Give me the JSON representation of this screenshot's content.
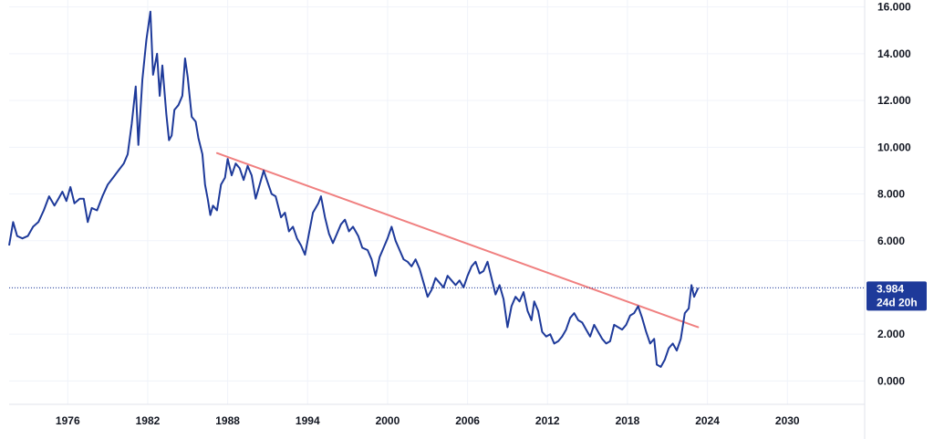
{
  "chart_data": {
    "type": "line",
    "title": "",
    "xlabel": "",
    "ylabel": "",
    "xlim": [
      1971.6,
      2035.8
    ],
    "ylim": [
      -1.0,
      16.3
    ],
    "x_ticks": [
      {
        "value": 1976,
        "label": "1976"
      },
      {
        "value": 1982,
        "label": "1982"
      },
      {
        "value": 1988,
        "label": "1988"
      },
      {
        "value": 1994,
        "label": "1994"
      },
      {
        "value": 2000,
        "label": "2000"
      },
      {
        "value": 2006,
        "label": "2006"
      },
      {
        "value": 2012,
        "label": "2012"
      },
      {
        "value": 2018,
        "label": "2018"
      },
      {
        "value": 2024,
        "label": "2024"
      },
      {
        "value": 2030,
        "label": "2030"
      }
    ],
    "y_ticks": [
      {
        "value": 0,
        "label": "0.000"
      },
      {
        "value": 2,
        "label": "2.000"
      },
      {
        "value": 4,
        "label": "4.000"
      },
      {
        "value": 6,
        "label": "6.000"
      },
      {
        "value": 8,
        "label": "8.000"
      },
      {
        "value": 10,
        "label": "10.000"
      },
      {
        "value": 12,
        "label": "12.000"
      },
      {
        "value": 14,
        "label": "14.000"
      },
      {
        "value": 16,
        "label": "16.000"
      }
    ],
    "grid": true,
    "series": [
      {
        "name": "",
        "color": "#1e3a9a",
        "points": [
          [
            1971.6,
            5.8
          ],
          [
            1971.9,
            6.8
          ],
          [
            1972.2,
            6.2
          ],
          [
            1972.6,
            6.1
          ],
          [
            1973.0,
            6.2
          ],
          [
            1973.4,
            6.6
          ],
          [
            1973.8,
            6.8
          ],
          [
            1974.2,
            7.3
          ],
          [
            1974.6,
            7.9
          ],
          [
            1975.0,
            7.5
          ],
          [
            1975.3,
            7.8
          ],
          [
            1975.6,
            8.1
          ],
          [
            1975.9,
            7.7
          ],
          [
            1976.2,
            8.3
          ],
          [
            1976.5,
            7.6
          ],
          [
            1976.9,
            7.8
          ],
          [
            1977.2,
            7.8
          ],
          [
            1977.5,
            6.8
          ],
          [
            1977.8,
            7.4
          ],
          [
            1978.2,
            7.3
          ],
          [
            1978.6,
            7.9
          ],
          [
            1979.0,
            8.4
          ],
          [
            1979.4,
            8.7
          ],
          [
            1979.8,
            9.0
          ],
          [
            1980.2,
            9.3
          ],
          [
            1980.5,
            9.7
          ],
          [
            1980.8,
            11.0
          ],
          [
            1981.1,
            12.6
          ],
          [
            1981.3,
            10.1
          ],
          [
            1981.6,
            12.9
          ],
          [
            1981.9,
            14.6
          ],
          [
            1982.2,
            15.8
          ],
          [
            1982.4,
            13.1
          ],
          [
            1982.7,
            14.0
          ],
          [
            1982.9,
            12.2
          ],
          [
            1983.1,
            13.5
          ],
          [
            1983.4,
            11.4
          ],
          [
            1983.6,
            10.3
          ],
          [
            1983.8,
            10.5
          ],
          [
            1984.0,
            11.6
          ],
          [
            1984.3,
            11.8
          ],
          [
            1984.6,
            12.2
          ],
          [
            1984.8,
            13.8
          ],
          [
            1985.0,
            13.0
          ],
          [
            1985.3,
            11.3
          ],
          [
            1985.6,
            11.1
          ],
          [
            1985.8,
            10.4
          ],
          [
            1986.1,
            9.7
          ],
          [
            1986.3,
            8.4
          ],
          [
            1986.5,
            7.8
          ],
          [
            1986.7,
            7.1
          ],
          [
            1986.9,
            7.5
          ],
          [
            1987.2,
            7.3
          ],
          [
            1987.5,
            8.4
          ],
          [
            1987.8,
            8.7
          ],
          [
            1988.0,
            9.5
          ],
          [
            1988.3,
            8.8
          ],
          [
            1988.6,
            9.3
          ],
          [
            1988.9,
            9.1
          ],
          [
            1989.2,
            8.6
          ],
          [
            1989.5,
            9.2
          ],
          [
            1989.8,
            8.8
          ],
          [
            1990.1,
            7.8
          ],
          [
            1990.4,
            8.4
          ],
          [
            1990.7,
            9.0
          ],
          [
            1991.0,
            8.5
          ],
          [
            1991.3,
            8.0
          ],
          [
            1991.6,
            7.9
          ],
          [
            1992.0,
            7.0
          ],
          [
            1992.3,
            7.2
          ],
          [
            1992.6,
            6.4
          ],
          [
            1992.9,
            6.6
          ],
          [
            1993.2,
            6.1
          ],
          [
            1993.5,
            5.8
          ],
          [
            1993.8,
            5.4
          ],
          [
            1994.1,
            6.3
          ],
          [
            1994.4,
            7.2
          ],
          [
            1994.8,
            7.6
          ],
          [
            1995.0,
            7.9
          ],
          [
            1995.3,
            7.0
          ],
          [
            1995.6,
            6.3
          ],
          [
            1995.9,
            5.9
          ],
          [
            1996.2,
            6.3
          ],
          [
            1996.5,
            6.7
          ],
          [
            1996.8,
            6.9
          ],
          [
            1997.1,
            6.4
          ],
          [
            1997.4,
            6.6
          ],
          [
            1997.8,
            6.2
          ],
          [
            1998.1,
            5.7
          ],
          [
            1998.5,
            5.6
          ],
          [
            1998.8,
            5.2
          ],
          [
            1999.1,
            4.5
          ],
          [
            1999.4,
            5.3
          ],
          [
            1999.7,
            5.7
          ],
          [
            2000.0,
            6.1
          ],
          [
            2000.3,
            6.6
          ],
          [
            2000.6,
            6.0
          ],
          [
            2000.9,
            5.6
          ],
          [
            2001.2,
            5.2
          ],
          [
            2001.5,
            5.1
          ],
          [
            2001.8,
            4.9
          ],
          [
            2002.1,
            5.2
          ],
          [
            2002.4,
            4.8
          ],
          [
            2002.7,
            4.2
          ],
          [
            2003.0,
            3.6
          ],
          [
            2003.3,
            3.9
          ],
          [
            2003.6,
            4.4
          ],
          [
            2003.9,
            4.2
          ],
          [
            2004.2,
            4.0
          ],
          [
            2004.5,
            4.5
          ],
          [
            2004.8,
            4.3
          ],
          [
            2005.1,
            4.1
          ],
          [
            2005.4,
            4.3
          ],
          [
            2005.7,
            4.0
          ],
          [
            2006.0,
            4.5
          ],
          [
            2006.3,
            4.9
          ],
          [
            2006.6,
            5.1
          ],
          [
            2006.9,
            4.6
          ],
          [
            2007.2,
            4.7
          ],
          [
            2007.5,
            5.1
          ],
          [
            2007.8,
            4.4
          ],
          [
            2008.1,
            3.7
          ],
          [
            2008.4,
            4.1
          ],
          [
            2008.7,
            3.5
          ],
          [
            2009.0,
            2.3
          ],
          [
            2009.3,
            3.2
          ],
          [
            2009.6,
            3.6
          ],
          [
            2009.9,
            3.4
          ],
          [
            2010.2,
            3.8
          ],
          [
            2010.5,
            3.0
          ],
          [
            2010.8,
            2.6
          ],
          [
            2011.0,
            3.4
          ],
          [
            2011.3,
            3.0
          ],
          [
            2011.6,
            2.1
          ],
          [
            2011.9,
            1.9
          ],
          [
            2012.2,
            2.0
          ],
          [
            2012.5,
            1.6
          ],
          [
            2012.8,
            1.7
          ],
          [
            2013.1,
            1.9
          ],
          [
            2013.4,
            2.2
          ],
          [
            2013.7,
            2.7
          ],
          [
            2014.0,
            2.9
          ],
          [
            2014.3,
            2.6
          ],
          [
            2014.6,
            2.5
          ],
          [
            2014.9,
            2.2
          ],
          [
            2015.2,
            1.9
          ],
          [
            2015.5,
            2.4
          ],
          [
            2015.8,
            2.1
          ],
          [
            2016.1,
            1.8
          ],
          [
            2016.4,
            1.6
          ],
          [
            2016.7,
            1.7
          ],
          [
            2017.0,
            2.4
          ],
          [
            2017.3,
            2.3
          ],
          [
            2017.6,
            2.2
          ],
          [
            2017.9,
            2.4
          ],
          [
            2018.2,
            2.8
          ],
          [
            2018.5,
            2.9
          ],
          [
            2018.8,
            3.2
          ],
          [
            2019.1,
            2.7
          ],
          [
            2019.4,
            2.1
          ],
          [
            2019.7,
            1.6
          ],
          [
            2020.0,
            1.8
          ],
          [
            2020.2,
            0.7
          ],
          [
            2020.5,
            0.6
          ],
          [
            2020.8,
            0.9
          ],
          [
            2021.1,
            1.4
          ],
          [
            2021.4,
            1.6
          ],
          [
            2021.7,
            1.3
          ],
          [
            2022.0,
            1.8
          ],
          [
            2022.3,
            2.9
          ],
          [
            2022.6,
            3.1
          ],
          [
            2022.8,
            4.1
          ],
          [
            2023.0,
            3.6
          ],
          [
            2023.3,
            3.98
          ]
        ]
      }
    ],
    "trendline": {
      "color": "#f08080",
      "start": [
        1987.2,
        9.75
      ],
      "end": [
        2023.3,
        2.3
      ]
    },
    "last_value": {
      "value": 3.984,
      "label": "3.984",
      "sublabel": "24d 20h",
      "color": "#1e3a9a"
    }
  }
}
